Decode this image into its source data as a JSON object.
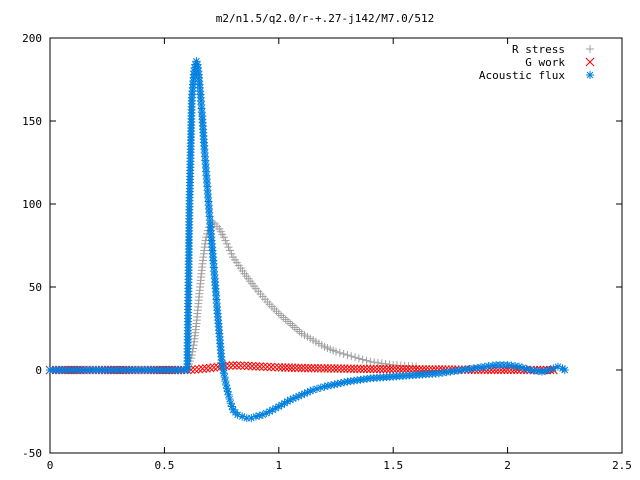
{
  "chart_data": {
    "type": "scatter",
    "title": "m2/n1.5/q2.0/r-+.27-j142/M7.0/512",
    "xlim": [
      0,
      2.5
    ],
    "ylim": [
      -50,
      200
    ],
    "x_ticks": [
      "0",
      "0.5",
      "1",
      "1.5",
      "2",
      "2.5"
    ],
    "y_ticks": [
      "-50",
      "0",
      "50",
      "100",
      "150",
      "200"
    ],
    "grid": false,
    "legend_position": "top-right",
    "series": [
      {
        "name": "R stress",
        "marker": "plus",
        "color": "#a0a0a0",
        "points": [
          [
            0.0,
            0
          ],
          [
            0.1,
            0
          ],
          [
            0.2,
            0
          ],
          [
            0.3,
            0
          ],
          [
            0.4,
            0
          ],
          [
            0.5,
            0
          ],
          [
            0.6,
            0
          ],
          [
            0.62,
            9
          ],
          [
            0.63,
            17
          ],
          [
            0.64,
            28
          ],
          [
            0.65,
            42
          ],
          [
            0.66,
            56
          ],
          [
            0.67,
            68
          ],
          [
            0.68,
            78
          ],
          [
            0.69,
            84
          ],
          [
            0.7,
            88
          ],
          [
            0.71,
            89
          ],
          [
            0.72,
            88
          ],
          [
            0.74,
            85
          ],
          [
            0.76,
            80
          ],
          [
            0.78,
            74
          ],
          [
            0.8,
            68
          ],
          [
            0.85,
            58
          ],
          [
            0.9,
            49
          ],
          [
            0.95,
            41
          ],
          [
            1.0,
            34
          ],
          [
            1.05,
            28
          ],
          [
            1.1,
            22
          ],
          [
            1.15,
            18
          ],
          [
            1.2,
            14
          ],
          [
            1.25,
            11
          ],
          [
            1.3,
            9
          ],
          [
            1.35,
            7
          ],
          [
            1.4,
            5
          ],
          [
            1.45,
            4
          ],
          [
            1.5,
            3
          ],
          [
            1.55,
            2.5
          ],
          [
            1.6,
            2
          ]
        ]
      },
      {
        "name": "G work",
        "marker": "cross",
        "color": "#ff0000",
        "points": [
          [
            0.0,
            0
          ],
          [
            0.2,
            0
          ],
          [
            0.4,
            0
          ],
          [
            0.6,
            0
          ],
          [
            0.65,
            0.5
          ],
          [
            0.7,
            1.2
          ],
          [
            0.75,
            2.2
          ],
          [
            0.8,
            2.8
          ],
          [
            0.85,
            2.6
          ],
          [
            0.9,
            2.2
          ],
          [
            0.95,
            1.9
          ],
          [
            1.0,
            1.6
          ],
          [
            1.1,
            1.2
          ],
          [
            1.2,
            1.0
          ],
          [
            1.3,
            0.8
          ],
          [
            1.4,
            0.6
          ],
          [
            1.5,
            0.5
          ],
          [
            1.6,
            0.4
          ],
          [
            1.7,
            0.3
          ],
          [
            1.8,
            0.2
          ],
          [
            1.9,
            0.1
          ],
          [
            2.0,
            0.1
          ],
          [
            2.1,
            0
          ],
          [
            2.2,
            0
          ]
        ]
      },
      {
        "name": "Acoustic flux",
        "marker": "star",
        "color": "#0080e0",
        "points": [
          [
            0.0,
            0
          ],
          [
            0.1,
            0
          ],
          [
            0.2,
            0
          ],
          [
            0.3,
            0
          ],
          [
            0.4,
            0
          ],
          [
            0.5,
            0
          ],
          [
            0.6,
            0
          ],
          [
            0.61,
            102
          ],
          [
            0.62,
            164
          ],
          [
            0.63,
            180
          ],
          [
            0.635,
            184
          ],
          [
            0.64,
            186
          ],
          [
            0.645,
            184
          ],
          [
            0.65,
            178
          ],
          [
            0.655,
            170
          ],
          [
            0.66,
            162
          ],
          [
            0.665,
            153
          ],
          [
            0.67,
            143
          ],
          [
            0.675,
            133
          ],
          [
            0.68,
            124
          ],
          [
            0.685,
            115
          ],
          [
            0.69,
            106
          ],
          [
            0.695,
            97
          ],
          [
            0.7,
            88
          ],
          [
            0.705,
            80
          ],
          [
            0.71,
            72
          ],
          [
            0.715,
            64
          ],
          [
            0.72,
            55
          ],
          [
            0.725,
            47
          ],
          [
            0.73,
            38
          ],
          [
            0.735,
            30
          ],
          [
            0.74,
            22
          ],
          [
            0.745,
            14
          ],
          [
            0.75,
            6
          ],
          [
            0.76,
            -2
          ],
          [
            0.77,
            -9
          ],
          [
            0.78,
            -15
          ],
          [
            0.79,
            -20
          ],
          [
            0.8,
            -24
          ],
          [
            0.82,
            -27
          ],
          [
            0.84,
            -28
          ],
          [
            0.86,
            -29
          ],
          [
            0.88,
            -29
          ],
          [
            0.9,
            -28
          ],
          [
            0.93,
            -27
          ],
          [
            0.96,
            -25
          ],
          [
            1.0,
            -22
          ],
          [
            1.05,
            -18
          ],
          [
            1.1,
            -15
          ],
          [
            1.15,
            -12
          ],
          [
            1.2,
            -10
          ],
          [
            1.3,
            -7
          ],
          [
            1.4,
            -5
          ],
          [
            1.5,
            -4
          ],
          [
            1.6,
            -3
          ],
          [
            1.7,
            -2
          ],
          [
            1.75,
            -1
          ],
          [
            1.8,
            0
          ],
          [
            1.85,
            1
          ],
          [
            1.9,
            2
          ],
          [
            1.95,
            3
          ],
          [
            2.0,
            3
          ],
          [
            2.05,
            2
          ],
          [
            2.1,
            0
          ],
          [
            2.15,
            -1
          ],
          [
            2.18,
            0
          ],
          [
            2.2,
            1
          ],
          [
            2.22,
            2
          ],
          [
            2.24,
            1
          ],
          [
            2.25,
            0
          ]
        ]
      }
    ]
  }
}
